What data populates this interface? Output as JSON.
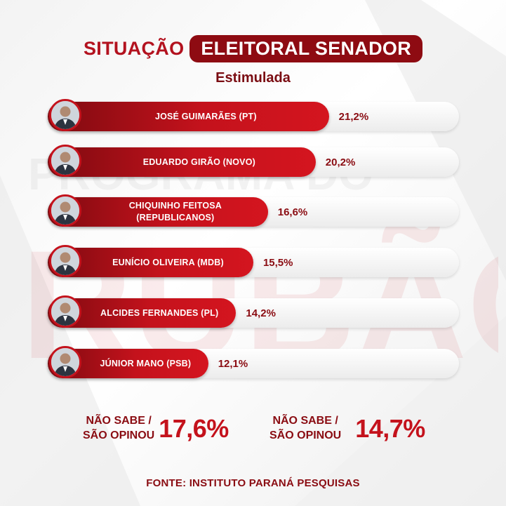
{
  "header": {
    "title_plain": "SITUAÇÃO",
    "title_highlight": "ELEITORAL SENADOR",
    "subtitle": "Estimulada"
  },
  "chart_data": {
    "type": "bar",
    "orientation": "horizontal",
    "title": "SITUAÇÃO ELEITORAL SENADOR",
    "subtitle": "Estimulada",
    "categories": [
      "JOSÉ GUIMARÃES (PT)",
      "EDUARDO GIRÃO (NOVO)",
      "CHIQUINHO FEITOSA (REPUBLICANOS)",
      "EUNÍCIO OLIVEIRA (MDB)",
      "ALCIDES FERNANDES (PL)",
      "JÚNIOR MANO (PSB)"
    ],
    "values": [
      21.2,
      20.2,
      16.6,
      15.5,
      14.2,
      12.1
    ],
    "value_labels": [
      "21,2%",
      "20,2%",
      "16,6%",
      "15,5%",
      "14,2%",
      "12,1%"
    ],
    "name_lines": [
      [
        "JOSÉ GUIMARÃES (PT)"
      ],
      [
        "EDUARDO GIRÃO (NOVO)"
      ],
      [
        "CHIQUINHO FEITOSA",
        "(REPUBLICANOS)"
      ],
      [
        "EUNÍCIO OLIVEIRA (MDB)"
      ],
      [
        "ALCIDES FERNANDES (PL)"
      ],
      [
        "JÚNIOR MANO (PSB)"
      ]
    ],
    "unit": "%",
    "colors": {
      "bar": "#c4121c",
      "bar_dark": "#7e0a10",
      "track": "#ececec",
      "text_dark": "#8a0c12"
    }
  },
  "footer": {
    "stat1": {
      "label_line1": "NÃO SABE /",
      "label_line2": "SÃO OPINOU",
      "value": "17,6%"
    },
    "stat2": {
      "label_line1": "NÃO SABE /",
      "label_line2": "SÃO OPINOU",
      "value": "14,7%"
    },
    "source": "FONTE: INSTITUTO PARANÁ PESQUISAS"
  },
  "watermark_text": "PROGRAMA DO RUBÃO"
}
